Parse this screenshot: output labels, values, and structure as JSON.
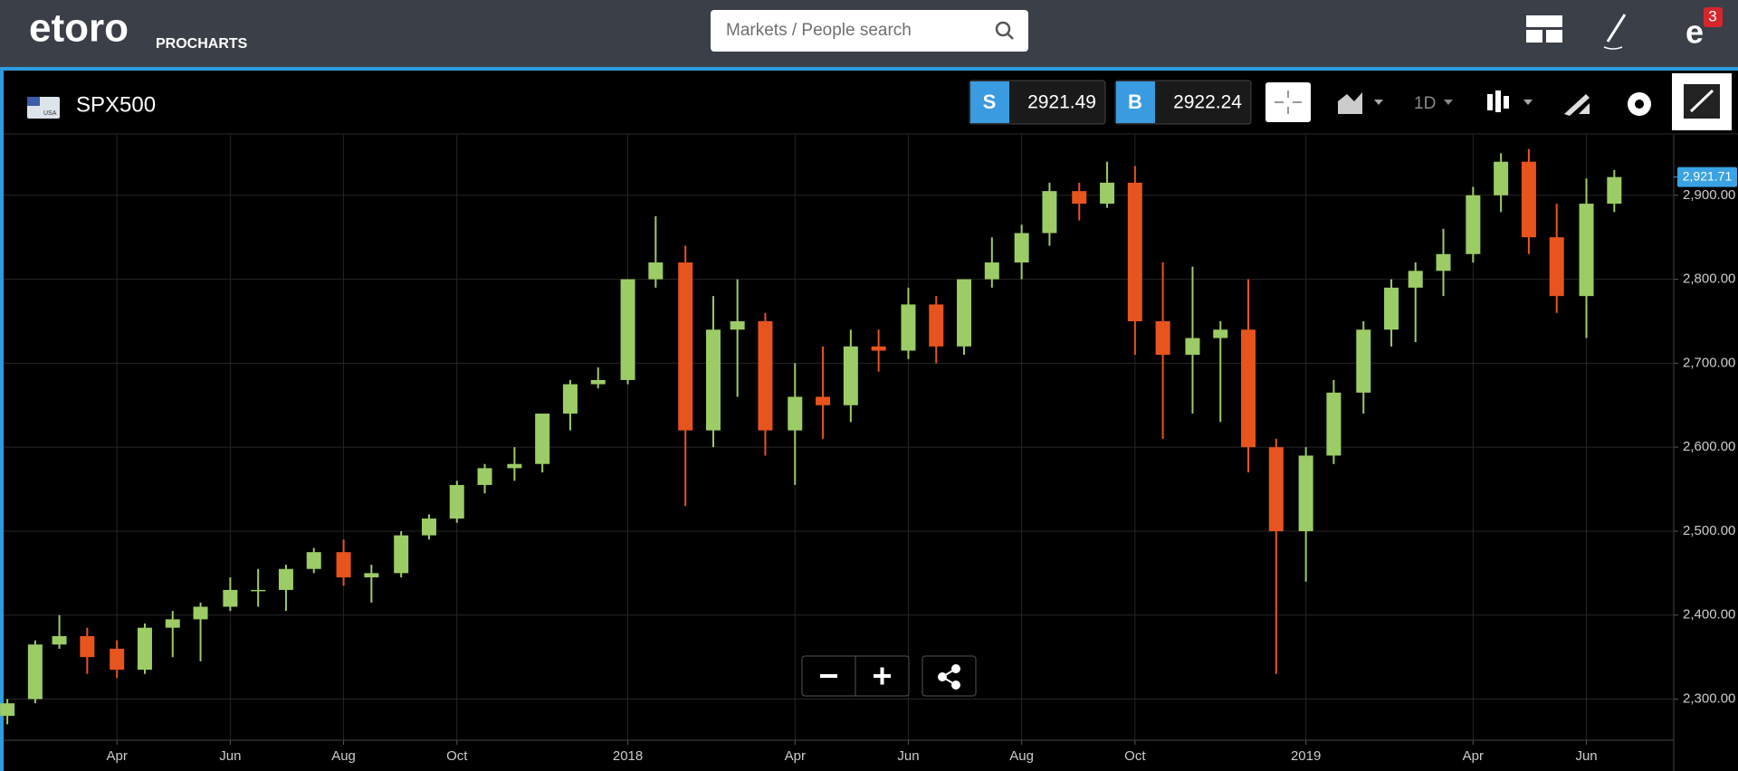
{
  "header": {
    "logo": "etoro",
    "product": "PROCHARTS",
    "search_placeholder": "Markets / People search",
    "notifications": "3"
  },
  "toolbar": {
    "flag": "USA",
    "instrument": "SPX500",
    "sell_label": "S",
    "sell_price": "2921.49",
    "buy_label": "B",
    "buy_price": "2922.24",
    "interval": "1D"
  },
  "chart_data": {
    "type": "candlestick",
    "up_color": "#9ccc65",
    "down_color": "#e8541e",
    "grid": true,
    "x": [
      "2017-02-01",
      "2017-02-16",
      "2017-03-01",
      "2017-03-16",
      "2017-04-01",
      "2017-04-16",
      "2017-05-01",
      "2017-05-16",
      "2017-06-01",
      "2017-06-16",
      "2017-07-01",
      "2017-07-16",
      "2017-08-01",
      "2017-08-16",
      "2017-09-01",
      "2017-09-16",
      "2017-10-01",
      "2017-10-16",
      "2017-11-01",
      "2017-11-16",
      "2017-12-01",
      "2017-12-16",
      "2018-01-01",
      "2018-01-16",
      "2018-02-01",
      "2018-02-16",
      "2018-03-01",
      "2018-03-16",
      "2018-04-01",
      "2018-04-16",
      "2018-05-01",
      "2018-05-16",
      "2018-06-01",
      "2018-06-16",
      "2018-07-01",
      "2018-07-16",
      "2018-08-01",
      "2018-08-16",
      "2018-09-01",
      "2018-09-16",
      "2018-10-01",
      "2018-10-16",
      "2018-11-01",
      "2018-11-16",
      "2018-12-01",
      "2018-12-16",
      "2019-01-01",
      "2019-01-16",
      "2019-02-01",
      "2019-02-16",
      "2019-03-01",
      "2019-03-16",
      "2019-04-01",
      "2019-04-16",
      "2019-05-01",
      "2019-05-16",
      "2019-06-01",
      "2019-06-16"
    ],
    "open": [
      2280,
      2300,
      2365,
      2375,
      2360,
      2335,
      2385,
      2395,
      2410,
      2430,
      2430,
      2455,
      2475,
      2445,
      2450,
      2495,
      2515,
      2555,
      2575,
      2580,
      2640,
      2675,
      2680,
      2800,
      2820,
      2620,
      2740,
      2750,
      2620,
      2660,
      2650,
      2720,
      2715,
      2770,
      2720,
      2800,
      2820,
      2855,
      2905,
      2890,
      2915,
      2750,
      2710,
      2730,
      2740,
      2600,
      2500,
      2590,
      2665,
      2740,
      2790,
      2810,
      2830,
      2900,
      2940,
      2850,
      2780,
      2890
    ],
    "high": [
      2300,
      2370,
      2400,
      2385,
      2370,
      2390,
      2405,
      2415,
      2445,
      2455,
      2460,
      2480,
      2490,
      2460,
      2500,
      2520,
      2560,
      2580,
      2600,
      2640,
      2680,
      2695,
      2800,
      2875,
      2840,
      2780,
      2800,
      2760,
      2700,
      2720,
      2740,
      2740,
      2790,
      2780,
      2800,
      2850,
      2865,
      2915,
      2915,
      2940,
      2935,
      2820,
      2815,
      2750,
      2800,
      2610,
      2600,
      2680,
      2750,
      2800,
      2820,
      2860,
      2910,
      2950,
      2955,
      2890,
      2920,
      2930
    ],
    "low": [
      2270,
      2295,
      2360,
      2330,
      2325,
      2330,
      2350,
      2345,
      2405,
      2410,
      2405,
      2450,
      2435,
      2415,
      2445,
      2490,
      2510,
      2545,
      2560,
      2570,
      2620,
      2670,
      2675,
      2790,
      2530,
      2600,
      2660,
      2590,
      2555,
      2610,
      2630,
      2690,
      2705,
      2700,
      2710,
      2790,
      2800,
      2840,
      2870,
      2885,
      2710,
      2610,
      2640,
      2630,
      2570,
      2330,
      2440,
      2580,
      2640,
      2720,
      2725,
      2780,
      2820,
      2880,
      2830,
      2760,
      2730,
      2880
    ],
    "close": [
      2295,
      2365,
      2375,
      2350,
      2335,
      2385,
      2395,
      2410,
      2430,
      2430,
      2455,
      2475,
      2445,
      2450,
      2495,
      2515,
      2555,
      2575,
      2580,
      2640,
      2675,
      2680,
      2800,
      2820,
      2620,
      2740,
      2750,
      2620,
      2660,
      2650,
      2720,
      2715,
      2770,
      2720,
      2800,
      2820,
      2855,
      2905,
      2890,
      2915,
      2750,
      2710,
      2730,
      2740,
      2600,
      2500,
      2590,
      2665,
      2740,
      2790,
      2810,
      2830,
      2900,
      2940,
      2850,
      2780,
      2890,
      2921.71
    ],
    "last_price": 2921.71,
    "last_price_label": "2,921.71",
    "last_price_color": "#3aa3e3",
    "xlim": [
      "2017-01-30",
      "2019-07-18"
    ],
    "xticks": [
      {
        "value": "2017-04-01",
        "label": "Apr"
      },
      {
        "value": "2017-06-01",
        "label": "Jun"
      },
      {
        "value": "2017-08-01",
        "label": "Aug"
      },
      {
        "value": "2017-10-01",
        "label": "Oct"
      },
      {
        "value": "2018-01-01",
        "label": "2018"
      },
      {
        "value": "2018-04-01",
        "label": "Apr"
      },
      {
        "value": "2018-06-01",
        "label": "Jun"
      },
      {
        "value": "2018-08-01",
        "label": "Aug"
      },
      {
        "value": "2018-10-01",
        "label": "Oct"
      },
      {
        "value": "2019-01-01",
        "label": "2019"
      },
      {
        "value": "2019-04-01",
        "label": "Apr"
      },
      {
        "value": "2019-06-01",
        "label": "Jun"
      }
    ],
    "ylim": [
      2251,
      2972
    ],
    "yticks": [
      {
        "value": 2300,
        "label": "2,300.00"
      },
      {
        "value": 2400,
        "label": "2,400.00"
      },
      {
        "value": 2500,
        "label": "2,500.00"
      },
      {
        "value": 2600,
        "label": "2,600.00"
      },
      {
        "value": 2700,
        "label": "2,700.00"
      },
      {
        "value": 2800,
        "label": "2,800.00"
      },
      {
        "value": 2900,
        "label": "2,900.00"
      }
    ]
  }
}
